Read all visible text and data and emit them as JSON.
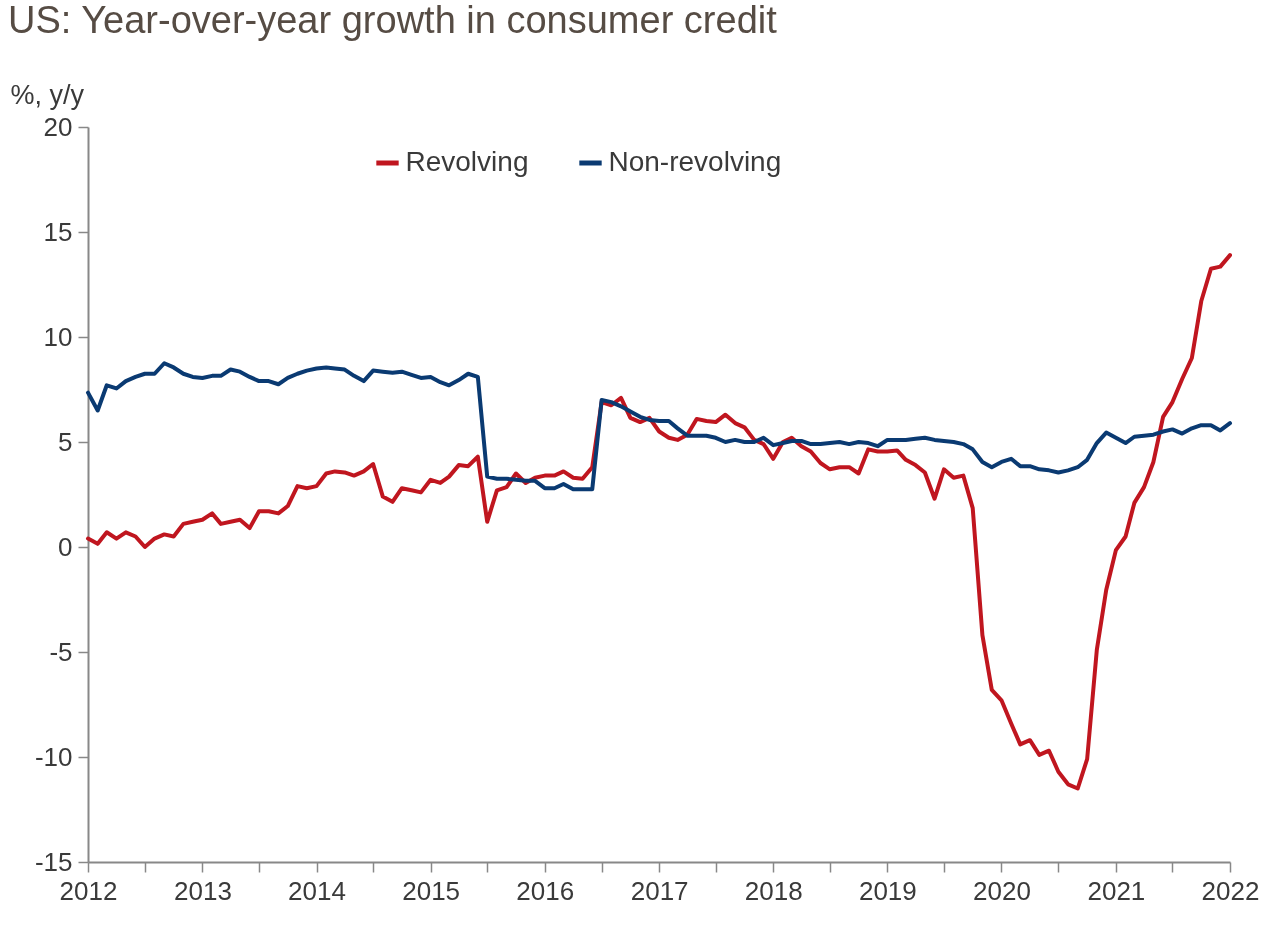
{
  "chart_data": {
    "type": "line",
    "title": "US: Year-over-year growth in consumer credit",
    "ylabel": "%, y/y",
    "x": [
      "2012-01",
      "2012-02",
      "2012-03",
      "2012-04",
      "2012-05",
      "2012-06",
      "2012-07",
      "2012-08",
      "2012-09",
      "2012-10",
      "2012-11",
      "2012-12",
      "2013-01",
      "2013-02",
      "2013-03",
      "2013-04",
      "2013-05",
      "2013-06",
      "2013-07",
      "2013-08",
      "2013-09",
      "2013-10",
      "2013-11",
      "2013-12",
      "2014-01",
      "2014-02",
      "2014-03",
      "2014-04",
      "2014-05",
      "2014-06",
      "2014-07",
      "2014-08",
      "2014-09",
      "2014-10",
      "2014-11",
      "2014-12",
      "2015-01",
      "2015-02",
      "2015-03",
      "2015-04",
      "2015-05",
      "2015-06",
      "2015-07",
      "2015-08",
      "2015-09",
      "2015-10",
      "2015-11",
      "2015-12",
      "2016-01",
      "2016-02",
      "2016-03",
      "2016-04",
      "2016-05",
      "2016-06",
      "2016-07",
      "2016-08",
      "2016-09",
      "2016-10",
      "2016-11",
      "2016-12",
      "2017-01",
      "2017-02",
      "2017-03",
      "2017-04",
      "2017-05",
      "2017-06",
      "2017-07",
      "2017-08",
      "2017-09",
      "2017-10",
      "2017-11",
      "2017-12",
      "2018-01",
      "2018-02",
      "2018-03",
      "2018-04",
      "2018-05",
      "2018-06",
      "2018-07",
      "2018-08",
      "2018-09",
      "2018-10",
      "2018-11",
      "2018-12",
      "2019-01",
      "2019-02",
      "2019-03",
      "2019-04",
      "2019-05",
      "2019-06",
      "2019-07",
      "2019-08",
      "2019-09",
      "2019-10",
      "2019-11",
      "2019-12",
      "2020-01",
      "2020-02",
      "2020-03",
      "2020-04",
      "2020-05",
      "2020-06",
      "2020-07",
      "2020-08",
      "2020-09",
      "2020-10",
      "2020-11",
      "2020-12",
      "2021-01",
      "2021-02",
      "2021-03",
      "2021-04",
      "2021-05",
      "2021-06",
      "2021-07",
      "2021-08",
      "2021-09",
      "2021-10",
      "2021-11",
      "2021-12",
      "2022-01"
    ],
    "series": [
      {
        "name": "Revolving",
        "color": "#c0161f",
        "values": [
          0.4,
          0.15,
          0.7,
          0.4,
          0.7,
          0.5,
          0.0,
          0.4,
          0.6,
          0.5,
          1.1,
          1.2,
          1.3,
          1.6,
          1.1,
          1.2,
          1.3,
          0.9,
          1.7,
          1.7,
          1.6,
          1.95,
          2.9,
          2.8,
          2.9,
          3.5,
          3.6,
          3.55,
          3.4,
          3.6,
          3.95,
          2.4,
          2.15,
          2.8,
          2.7,
          2.6,
          3.2,
          3.05,
          3.35,
          3.9,
          3.85,
          4.3,
          1.2,
          2.7,
          2.85,
          3.5,
          3.05,
          3.3,
          3.4,
          3.4,
          3.6,
          3.3,
          3.25,
          3.8,
          6.9,
          6.75,
          7.1,
          6.15,
          5.95,
          6.15,
          5.5,
          5.2,
          5.1,
          5.35,
          6.1,
          6.0,
          5.95,
          6.3,
          5.9,
          5.7,
          5.1,
          4.9,
          4.2,
          5.0,
          5.2,
          4.8,
          4.55,
          4.0,
          3.7,
          3.8,
          3.8,
          3.5,
          4.65,
          4.55,
          4.55,
          4.6,
          4.15,
          3.9,
          3.55,
          2.3,
          3.7,
          3.3,
          3.4,
          1.85,
          -4.2,
          -6.8,
          -7.3,
          -8.4,
          -9.4,
          -9.2,
          -9.9,
          -9.7,
          -10.7,
          -11.3,
          -11.5,
          -10.1,
          -4.9,
          -2.05,
          -0.15,
          0.5,
          2.1,
          2.85,
          4.05,
          6.2,
          6.9,
          8.0,
          9.0,
          11.7,
          13.25,
          13.35,
          13.9
        ]
      },
      {
        "name": "Non-revolving",
        "color": "#0a3a72",
        "values": [
          7.35,
          6.5,
          7.7,
          7.55,
          7.9,
          8.1,
          8.25,
          8.25,
          8.75,
          8.55,
          8.25,
          8.1,
          8.05,
          8.15,
          8.15,
          8.45,
          8.35,
          8.1,
          7.9,
          7.9,
          7.75,
          8.05,
          8.25,
          8.4,
          8.5,
          8.55,
          8.5,
          8.45,
          8.15,
          7.9,
          8.4,
          8.35,
          8.3,
          8.35,
          8.2,
          8.05,
          8.1,
          7.85,
          7.7,
          7.95,
          8.25,
          8.1,
          3.35,
          3.25,
          3.25,
          3.2,
          3.15,
          3.15,
          2.8,
          2.8,
          3.0,
          2.75,
          2.75,
          2.75,
          7.0,
          6.9,
          6.7,
          6.45,
          6.2,
          6.05,
          6.0,
          6.0,
          5.65,
          5.3,
          5.3,
          5.3,
          5.2,
          5.0,
          5.1,
          5.0,
          5.0,
          5.2,
          4.85,
          4.95,
          5.05,
          5.05,
          4.9,
          4.9,
          4.95,
          5.0,
          4.9,
          5.0,
          4.95,
          4.8,
          5.1,
          5.1,
          5.1,
          5.15,
          5.2,
          5.1,
          5.05,
          5.0,
          4.9,
          4.65,
          4.05,
          3.8,
          4.05,
          4.2,
          3.85,
          3.85,
          3.7,
          3.65,
          3.55,
          3.65,
          3.8,
          4.15,
          4.95,
          5.45,
          5.2,
          4.95,
          5.25,
          5.3,
          5.35,
          5.5,
          5.6,
          5.4,
          5.65,
          5.8,
          5.8,
          5.55,
          5.9
        ]
      }
    ],
    "xlim": [
      "2012-01",
      "2022-01"
    ],
    "xticks": [
      {
        "value": "2012-01",
        "label": "2012"
      },
      {
        "value": "2012-07",
        "label": null
      },
      {
        "value": "2013-01",
        "label": "2013"
      },
      {
        "value": "2013-07",
        "label": null
      },
      {
        "value": "2014-01",
        "label": "2014"
      },
      {
        "value": "2014-07",
        "label": null
      },
      {
        "value": "2015-01",
        "label": "2015"
      },
      {
        "value": "2015-07",
        "label": null
      },
      {
        "value": "2016-01",
        "label": "2016"
      },
      {
        "value": "2016-07",
        "label": null
      },
      {
        "value": "2017-01",
        "label": "2017"
      },
      {
        "value": "2017-07",
        "label": null
      },
      {
        "value": "2018-01",
        "label": "2018"
      },
      {
        "value": "2018-07",
        "label": null
      },
      {
        "value": "2019-01",
        "label": "2019"
      },
      {
        "value": "2019-07",
        "label": null
      },
      {
        "value": "2020-01",
        "label": "2020"
      },
      {
        "value": "2020-07",
        "label": null
      },
      {
        "value": "2021-01",
        "label": "2021"
      },
      {
        "value": "2021-07",
        "label": null
      },
      {
        "value": "2022-01",
        "label": "2022"
      }
    ],
    "ylim": [
      -15,
      20
    ],
    "yticks": [
      -15,
      -10,
      -5,
      0,
      5,
      10,
      15,
      20
    ],
    "legend": "top",
    "grid": false,
    "line_style": "solid",
    "marker": "none"
  }
}
